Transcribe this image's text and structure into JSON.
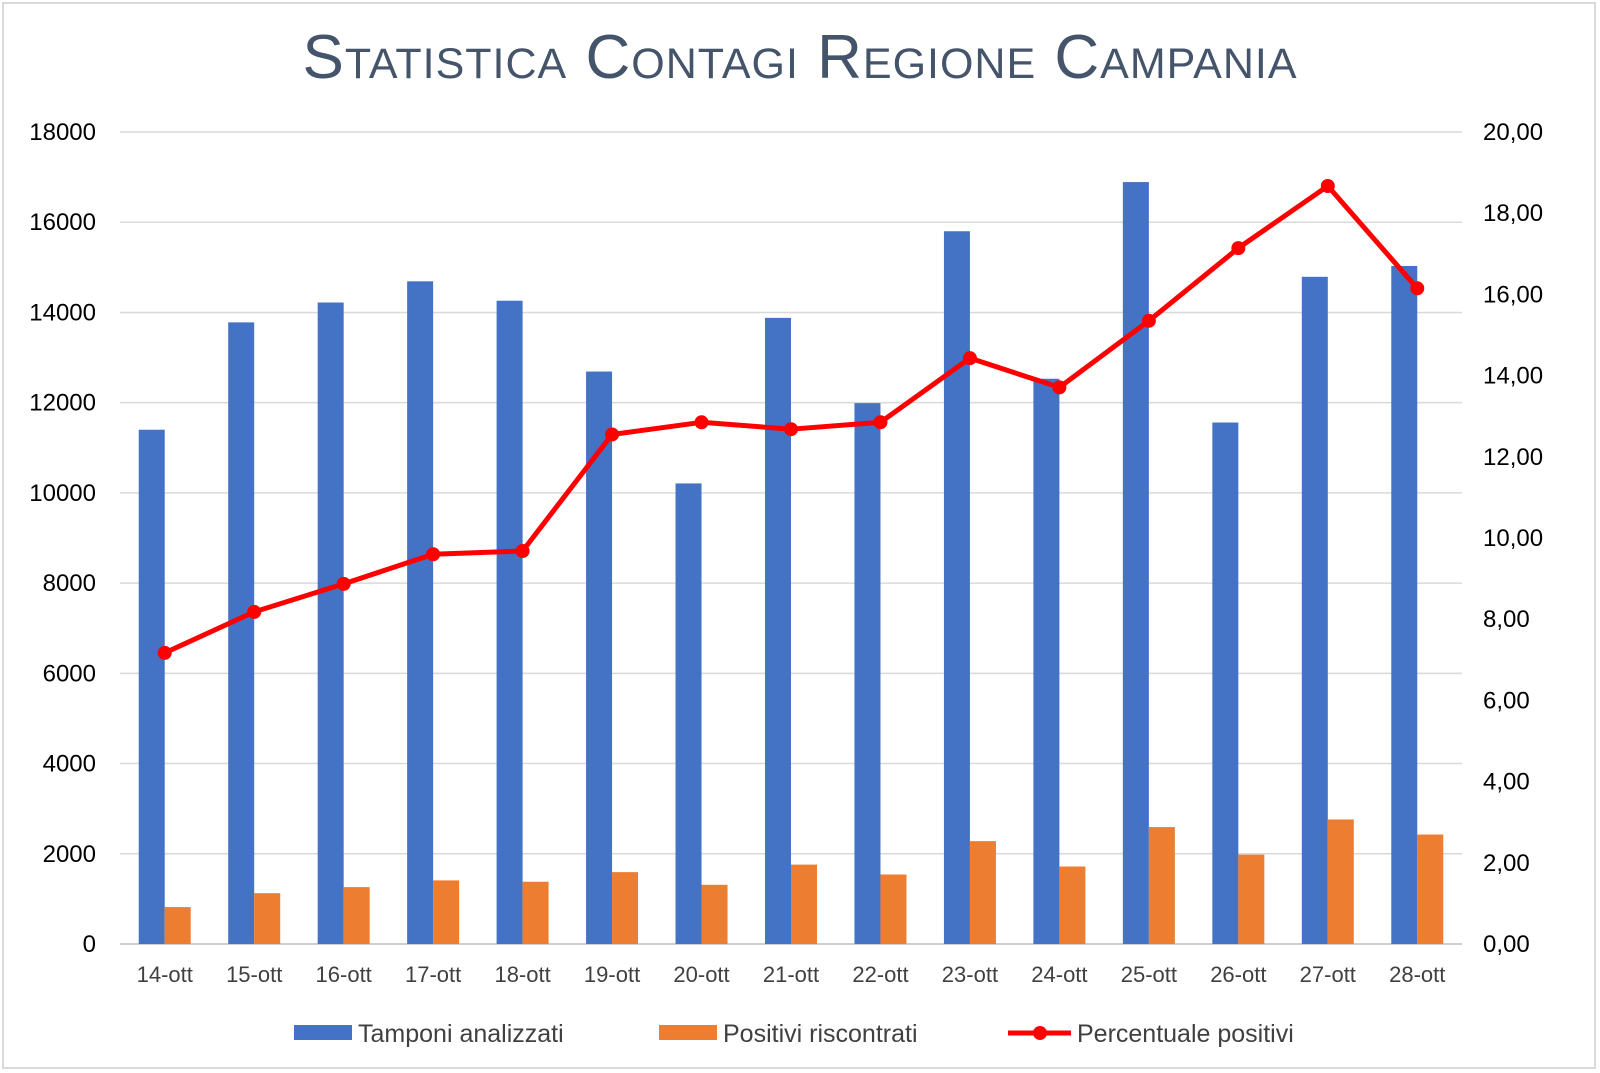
{
  "chart_data": {
    "type": "bar",
    "title": "Statistica Contagi Regione Campania",
    "categories": [
      "14-ott",
      "15-ott",
      "16-ott",
      "17-ott",
      "18-ott",
      "19-ott",
      "20-ott",
      "21-ott",
      "22-ott",
      "23-ott",
      "24-ott",
      "25-ott",
      "26-ott",
      "27-ott",
      "28-ott"
    ],
    "series": [
      {
        "name": "Tamponi analizzati",
        "type": "bar",
        "axis": "left",
        "color": "#4472c4",
        "values": [
          11400,
          13780,
          14220,
          14690,
          14260,
          12690,
          10210,
          13880,
          11990,
          15800,
          12530,
          16890,
          11560,
          14790,
          15030
        ]
      },
      {
        "name": "Positivi riscontrati",
        "type": "bar",
        "axis": "left",
        "color": "#ed7d31",
        "values": [
          818,
          1127,
          1261,
          1410,
          1380,
          1593,
          1312,
          1760,
          1541,
          2280,
          1718,
          2592,
          1981,
          2761,
          2427
        ]
      },
      {
        "name": "Percentuale positivi",
        "type": "line",
        "axis": "right",
        "color": "#ff0000",
        "values": [
          7.17,
          8.18,
          8.87,
          9.6,
          9.68,
          12.55,
          12.85,
          12.68,
          12.85,
          14.43,
          13.71,
          15.35,
          17.14,
          18.67,
          16.15
        ]
      }
    ],
    "y_left": {
      "min": 0,
      "max": 18000,
      "ticks": [
        "0",
        "2000",
        "4000",
        "6000",
        "8000",
        "10000",
        "12000",
        "14000",
        "16000",
        "18000"
      ]
    },
    "y_right": {
      "min": 0,
      "max": 20,
      "ticks": [
        "0,00",
        "2,00",
        "4,00",
        "6,00",
        "8,00",
        "10,00",
        "12,00",
        "14,00",
        "16,00",
        "18,00",
        "20,00"
      ]
    },
    "grid": true,
    "legend_position": "bottom"
  }
}
